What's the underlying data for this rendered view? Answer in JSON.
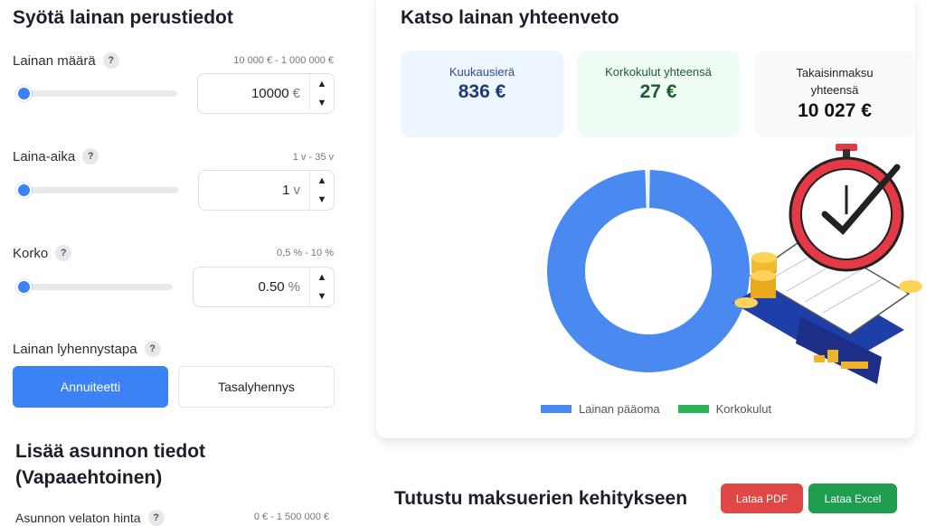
{
  "left": {
    "title": "Syötä lainan perustiedot",
    "fields": [
      {
        "label": "Lainan määrä",
        "help": "?",
        "range": "10 000 € - 1 000 000 €",
        "value": "10000",
        "unit": "€",
        "slider": 0
      },
      {
        "label": "Laina-aika",
        "help": "?",
        "range": "1 v - 35 v",
        "value": "1",
        "unit": "v",
        "slider": 0
      },
      {
        "label": "Korko",
        "help": "?",
        "range": "0,5 % - 10 %",
        "value": "0.50",
        "unit": "%",
        "slider": 0
      }
    ],
    "method_label": "Lainan lyhennystapa",
    "method_help": "?",
    "method_options": [
      "Annuiteetti",
      "Tasalyhennys"
    ],
    "method_selected": "Annuiteetti",
    "optional_title": "Lisää asunnon tiedot (Vapaaehtoinen)",
    "price_label": "Asunnon velaton hinta",
    "price_help": "?",
    "price_range": "0 € - 1 500 000 €",
    "up": "▲",
    "down": "▼"
  },
  "summary": {
    "title": "Katso lainan yhteenveto",
    "cards": [
      {
        "label": "Kuukausierä",
        "value": "836 €"
      },
      {
        "label": "Korkokulut yhteensä",
        "value": "27 €"
      },
      {
        "label": "Takaisinmaksu yhteensä",
        "value": "10 027 €"
      }
    ],
    "legend": [
      "Lainan pääoma",
      "Korkokulut"
    ],
    "colors": {
      "principal": "#4a8af0",
      "interest": "#2fb35a"
    }
  },
  "chart_data": {
    "type": "pie",
    "categories": [
      "Lainan pääoma",
      "Korkokulut"
    ],
    "values": [
      10000,
      27
    ]
  },
  "bottom": {
    "title": "Tutustu maksuerien kehitykseen",
    "pdf": "Lataa PDF",
    "excel": "Lataa Excel"
  }
}
